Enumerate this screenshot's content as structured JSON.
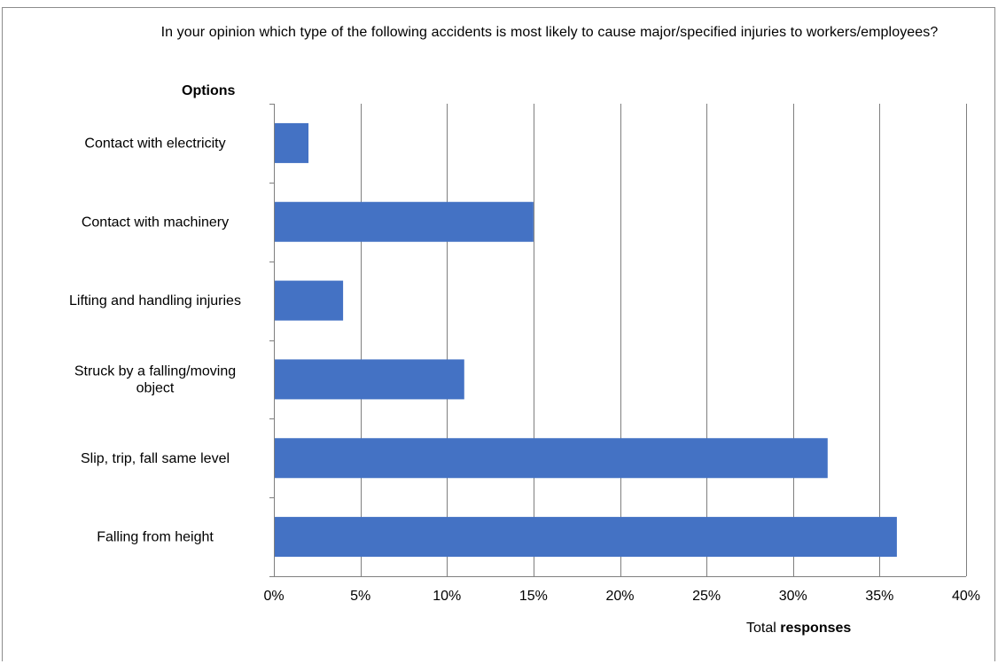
{
  "chart_data": {
    "type": "bar",
    "orientation": "horizontal",
    "title": "In your opinion which type of the following accidents is most likely to cause major/specified injuries to workers/employees?",
    "ylabel": "Options",
    "xlabel_prefix": "Total",
    "xlabel_bold": "responses",
    "categories": [
      [
        "Contact with electricity"
      ],
      [
        "Contact with machinery"
      ],
      [
        "Lifting and handling injuries"
      ],
      [
        "Struck by a falling/moving",
        "object"
      ],
      [
        "Slip, trip, fall same level"
      ],
      [
        "Falling from height"
      ]
    ],
    "values": [
      2,
      15,
      4,
      11,
      32,
      36
    ],
    "xlim": [
      0,
      40
    ],
    "xticks": [
      0,
      5,
      10,
      15,
      20,
      25,
      30,
      35,
      40
    ],
    "tick_suffix": "%",
    "grid": "vertical",
    "bar_color": "#4472c4",
    "grid_color": "#7f7f7f"
  }
}
